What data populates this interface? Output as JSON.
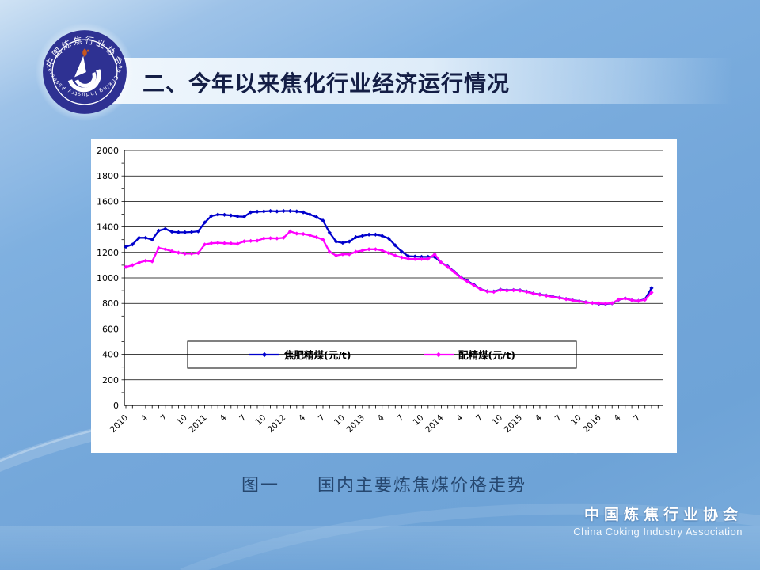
{
  "slide": {
    "title": "二、今年以来焦化行业经济运行情况",
    "caption": "图一　　国内主要炼焦煤价格走势",
    "footer": {
      "cn": "中国炼焦行业协会",
      "en": "China Coking Industry Association"
    },
    "logo": {
      "arc_top": "中国炼焦行业协会",
      "arc_bottom": "China Coking Industry Association"
    },
    "colors": {
      "background": "#74a7da",
      "title_text": "#141e45",
      "caption_text": "#26476f",
      "panel": "#ffffff",
      "series1": "#0000cc",
      "series2": "#ff00ff",
      "logo_navy": "#2e3192",
      "logo_flame": "#c9571e"
    }
  },
  "chart_data": {
    "type": "line",
    "title": "",
    "xlabel": "",
    "ylabel": "",
    "x_range": "2010-01 to 2016-09, monthly",
    "x_tick_labels": [
      "2010",
      "4",
      "7",
      "10",
      "2011",
      "4",
      "7",
      "10",
      "2012",
      "4",
      "7",
      "10",
      "2013",
      "4",
      "7",
      "10",
      "2014",
      "4",
      "7",
      "10",
      "2015",
      "4",
      "7",
      "10",
      "2016",
      "4",
      "7"
    ],
    "x_tick_every_months": 3,
    "y_ticks": [
      0,
      200,
      400,
      600,
      800,
      1000,
      1200,
      1400,
      1600,
      1800,
      2000
    ],
    "ylim": [
      0,
      2000
    ],
    "grid": true,
    "legend_position": "inside-lower-center-box",
    "series": [
      {
        "name": "焦肥精煤(元/t)",
        "color": "#0000cc",
        "values": [
          1245,
          1262,
          1315,
          1315,
          1300,
          1370,
          1385,
          1362,
          1358,
          1358,
          1360,
          1365,
          1435,
          1485,
          1497,
          1495,
          1490,
          1482,
          1480,
          1515,
          1520,
          1522,
          1525,
          1522,
          1525,
          1525,
          1522,
          1515,
          1498,
          1478,
          1450,
          1355,
          1285,
          1275,
          1285,
          1320,
          1330,
          1340,
          1340,
          1330,
          1310,
          1255,
          1205,
          1170,
          1168,
          1165,
          1165,
          1165,
          1120,
          1090,
          1048,
          1005,
          975,
          945,
          912,
          895,
          893,
          908,
          903,
          905,
          903,
          893,
          878,
          870,
          862,
          852,
          845,
          835,
          825,
          818,
          810,
          803,
          797,
          795,
          800,
          828,
          840,
          825,
          820,
          832,
          920
        ]
      },
      {
        "name": "配精煤(元/t)",
        "color": "#ff00ff",
        "values": [
          1085,
          1100,
          1120,
          1135,
          1130,
          1235,
          1225,
          1210,
          1198,
          1190,
          1190,
          1195,
          1262,
          1272,
          1275,
          1272,
          1270,
          1268,
          1287,
          1290,
          1292,
          1310,
          1312,
          1310,
          1315,
          1365,
          1348,
          1345,
          1335,
          1320,
          1300,
          1205,
          1175,
          1185,
          1185,
          1205,
          1215,
          1225,
          1225,
          1215,
          1195,
          1175,
          1160,
          1150,
          1148,
          1148,
          1150,
          1185,
          1120,
          1085,
          1045,
          1000,
          970,
          940,
          910,
          893,
          890,
          905,
          900,
          903,
          900,
          890,
          877,
          868,
          860,
          850,
          843,
          833,
          823,
          816,
          808,
          803,
          800,
          798,
          802,
          830,
          838,
          824,
          819,
          828,
          885
        ]
      }
    ]
  }
}
